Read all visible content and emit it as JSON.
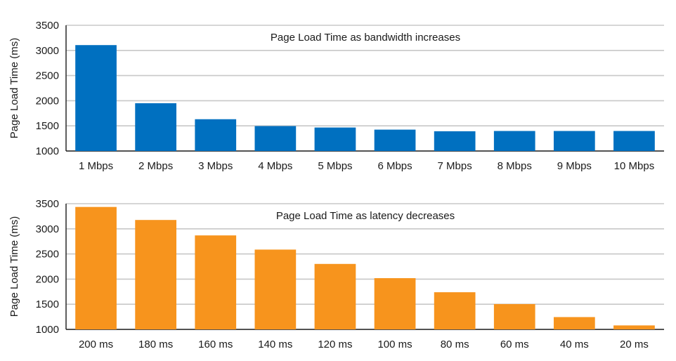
{
  "chart_data": [
    {
      "type": "bar",
      "title": "Page Load Time as bandwidth increases",
      "xlabel": "",
      "ylabel": "Page Load Time (ms)",
      "ylim": [
        1000,
        3500
      ],
      "yticks": [
        1000,
        1500,
        2000,
        2500,
        3000,
        3500
      ],
      "grid": true,
      "color": "#0070c0",
      "categories": [
        "1 Mbps",
        "2 Mbps",
        "3 Mbps",
        "4 Mbps",
        "5 Mbps",
        "6 Mbps",
        "7 Mbps",
        "8 Mbps",
        "9 Mbps",
        "10 Mbps"
      ],
      "values": [
        3106,
        1950,
        1632,
        1496,
        1467,
        1425,
        1393,
        1398,
        1398,
        1398
      ]
    },
    {
      "type": "bar",
      "title": "Page Load Time as latency decreases",
      "xlabel": "",
      "ylabel": "Page Load Time (ms)",
      "ylim": [
        1000,
        3500
      ],
      "yticks": [
        1000,
        1500,
        2000,
        2500,
        3000,
        3500
      ],
      "grid": true,
      "color": "#f7941d",
      "categories": [
        "200 ms",
        "180 ms",
        "160 ms",
        "140 ms",
        "120 ms",
        "100 ms",
        "80 ms",
        "60 ms",
        "40 ms",
        "20 ms"
      ],
      "values": [
        3435,
        3176,
        2869,
        2587,
        2302,
        2019,
        1739,
        1504,
        1245,
        1079
      ]
    }
  ]
}
